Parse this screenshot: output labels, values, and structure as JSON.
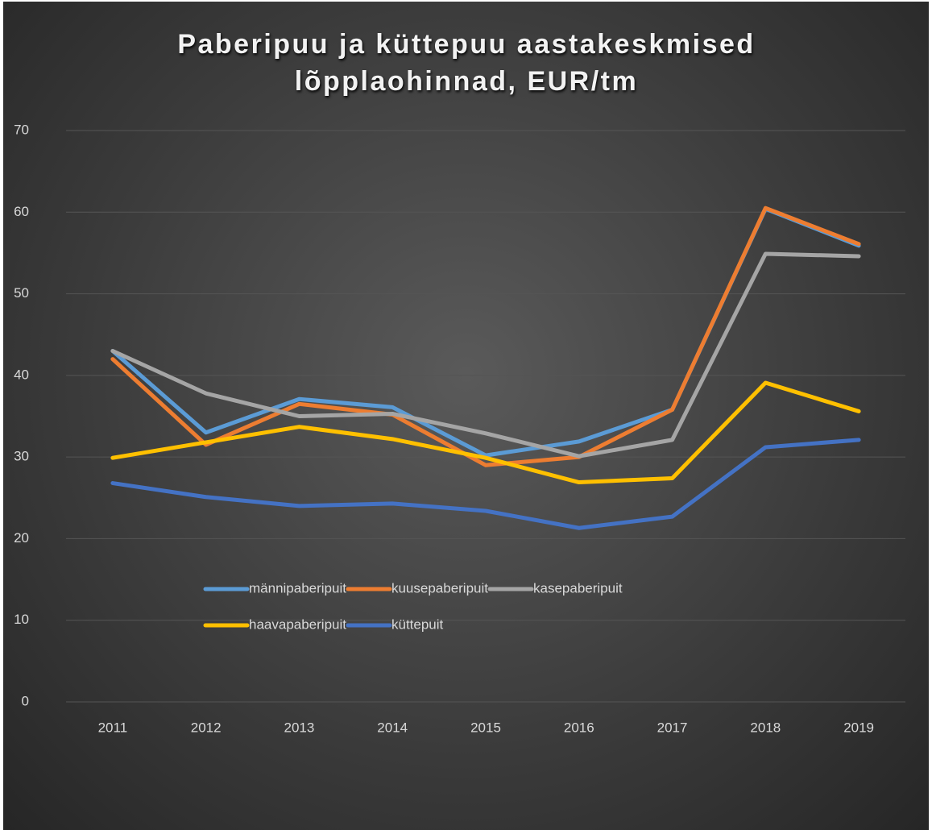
{
  "chart_data": {
    "type": "line",
    "title": "Paberipuu ja küttepuu aastakeskmised lõpplaohinnad, EUR/tm",
    "categories": [
      "2011",
      "2012",
      "2013",
      "2014",
      "2015",
      "2016",
      "2017",
      "2018",
      "2019"
    ],
    "series": [
      {
        "name": "männipaberipuit",
        "color": "#5b9bd5",
        "values": [
          43.0,
          33.0,
          37.1,
          36.1,
          30.2,
          31.9,
          35.8,
          60.4,
          55.9
        ]
      },
      {
        "name": "kuusepaberipuit",
        "color": "#ed7d31",
        "values": [
          42.0,
          31.5,
          36.5,
          35.2,
          29.0,
          30.0,
          35.8,
          60.5,
          56.1
        ]
      },
      {
        "name": "kasepaberipuit",
        "color": "#a5a5a5",
        "values": [
          43.0,
          37.8,
          35.0,
          35.3,
          32.9,
          30.1,
          32.1,
          54.9,
          54.6
        ]
      },
      {
        "name": "haavapaberipuit",
        "color": "#ffc000",
        "values": [
          29.9,
          31.8,
          33.7,
          32.2,
          29.9,
          26.9,
          27.4,
          39.1,
          35.6
        ]
      },
      {
        "name": "küttepuit",
        "color": "#4472c4",
        "values": [
          26.8,
          25.1,
          24.0,
          24.3,
          23.4,
          21.3,
          22.7,
          31.2,
          32.1
        ]
      }
    ],
    "ylim": [
      0,
      70
    ],
    "yticks": [
      0,
      10,
      20,
      30,
      40,
      50,
      60,
      70
    ],
    "grid": true,
    "legend": "bottom"
  }
}
